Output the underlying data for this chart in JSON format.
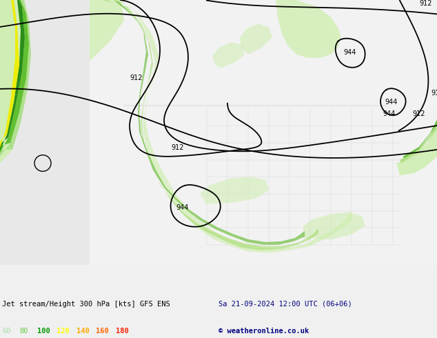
{
  "title_left": "Jet stream/Height 300 hPa [kts] GFS ENS",
  "title_right": "Sa 21-09-2024 12:00 UTC (06+06)",
  "copyright": "© weatheronline.co.uk",
  "legend_values": [
    "60",
    "80",
    "100",
    "120",
    "140",
    "160",
    "180"
  ],
  "legend_colors": [
    "#aaddaa",
    "#66cc44",
    "#009900",
    "#ffff00",
    "#ffaa00",
    "#ff6600",
    "#ff2200"
  ],
  "bg_color": "#e8e8e8",
  "land_color": "#cccccc",
  "ocean_color": "#e0e8e0",
  "figsize": [
    6.34,
    4.9
  ],
  "dpi": 100,
  "title_color": "#000080",
  "copyright_color": "#000080"
}
